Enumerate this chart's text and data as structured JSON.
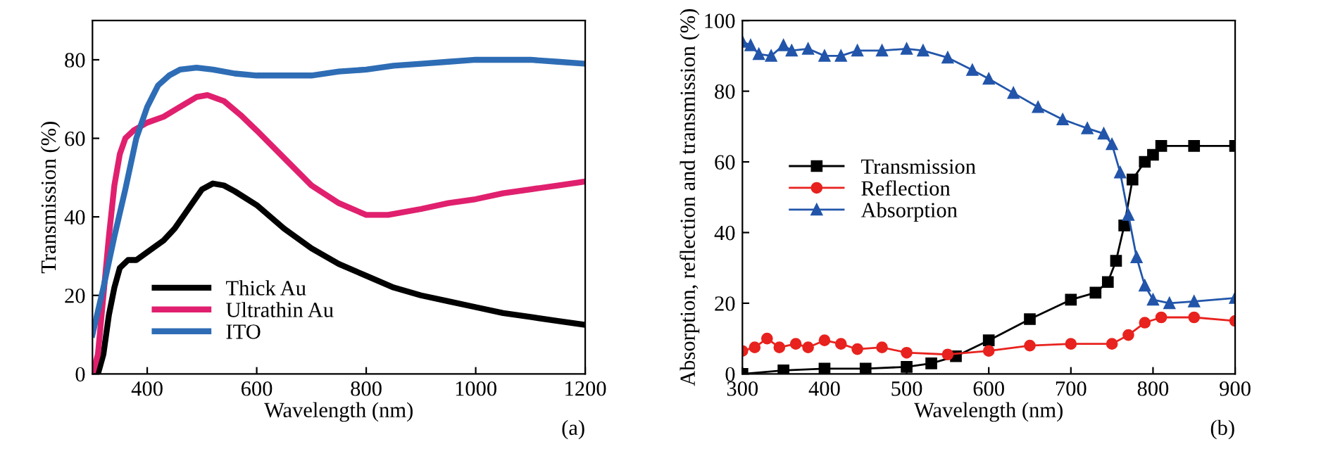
{
  "chart_data": [
    {
      "type": "line",
      "xlabel": "Wavelength (nm)",
      "ylabel": "Transmission (%)",
      "xlim": [
        300,
        1200
      ],
      "ylim": [
        0,
        90
      ],
      "xticks": [
        400,
        600,
        800,
        1000,
        1200
      ],
      "yticks": [
        0,
        20,
        40,
        60,
        80
      ],
      "grid": false,
      "legend": "bottom left",
      "marker": "none",
      "line_style": "solid",
      "annotations": [
        "(a)"
      ],
      "series": [
        {
          "name": "Thick Au",
          "color": "#000000",
          "x": [
            310,
            320,
            330,
            340,
            350,
            365,
            380,
            400,
            430,
            450,
            480,
            500,
            520,
            540,
            560,
            600,
            650,
            700,
            750,
            800,
            850,
            900,
            950,
            1000,
            1050,
            1100,
            1150,
            1200
          ],
          "values": [
            0,
            5,
            15,
            22,
            27,
            29,
            29,
            31,
            34,
            37,
            43,
            47,
            48.5,
            48,
            46.5,
            43,
            37,
            32,
            28,
            25,
            22,
            20,
            18.5,
            17,
            15.5,
            14.5,
            13.5,
            12.5
          ]
        },
        {
          "name": "Ultrathin Au",
          "color": "#e0206e",
          "x": [
            300,
            310,
            320,
            330,
            340,
            350,
            360,
            375,
            400,
            430,
            460,
            490,
            510,
            540,
            570,
            600,
            650,
            700,
            750,
            800,
            840,
            900,
            950,
            1000,
            1050,
            1100,
            1150,
            1200
          ],
          "values": [
            0,
            5,
            20,
            35,
            48,
            56,
            60,
            62,
            64,
            65.5,
            68,
            70.5,
            71,
            69.5,
            66,
            62,
            55,
            48,
            43.5,
            40.5,
            40.5,
            42,
            43.5,
            44.5,
            46,
            47,
            48,
            49
          ]
        },
        {
          "name": "ITO",
          "color": "#2e6db5",
          "x": [
            300,
            320,
            340,
            360,
            380,
            400,
            420,
            440,
            460,
            490,
            520,
            560,
            600,
            650,
            700,
            750,
            800,
            850,
            900,
            950,
            1000,
            1050,
            1100,
            1150,
            1200
          ],
          "values": [
            10,
            22,
            35,
            47,
            60,
            68,
            73.5,
            76,
            77.5,
            78,
            77.5,
            76.5,
            76,
            76,
            76,
            77,
            77.5,
            78.5,
            79,
            79.5,
            80,
            80,
            80,
            79.5,
            79
          ]
        }
      ]
    },
    {
      "type": "line",
      "xlabel": "Wavelength (nm)",
      "ylabel": "Absorption, reflection and transmission (%)",
      "xlim": [
        300,
        900
      ],
      "ylim": [
        0,
        100
      ],
      "xticks": [
        300,
        400,
        500,
        600,
        700,
        800,
        900
      ],
      "yticks": [
        0,
        20,
        40,
        60,
        80,
        100
      ],
      "grid": false,
      "legend": "left",
      "line_style": "solid",
      "annotations": [
        "(b)"
      ],
      "series": [
        {
          "name": "Transmission",
          "color": "#000000",
          "marker": "square",
          "x": [
            300,
            350,
            400,
            450,
            500,
            530,
            560,
            600,
            650,
            700,
            730,
            745,
            755,
            765,
            775,
            790,
            800,
            810,
            850,
            900
          ],
          "values": [
            0,
            1,
            1.5,
            1.5,
            2,
            3,
            5,
            9.5,
            15.5,
            21,
            23,
            26,
            32,
            42,
            55,
            60,
            62,
            64.5,
            64.5,
            64.5
          ]
        },
        {
          "name": "Reflection",
          "color": "#e8221e",
          "marker": "circle",
          "x": [
            300,
            315,
            330,
            345,
            365,
            380,
            400,
            420,
            440,
            470,
            500,
            550,
            600,
            650,
            700,
            750,
            770,
            790,
            810,
            850,
            900
          ],
          "values": [
            6.5,
            7.5,
            10,
            7.5,
            8.5,
            7.5,
            9.5,
            8.5,
            7,
            7.5,
            6,
            5.5,
            6.5,
            8,
            8.5,
            8.5,
            11,
            14.5,
            16,
            16,
            15
          ]
        },
        {
          "name": "Absorption",
          "color": "#2255aa",
          "marker": "triangle",
          "x": [
            300,
            310,
            320,
            335,
            350,
            360,
            380,
            400,
            420,
            440,
            470,
            500,
            520,
            550,
            580,
            600,
            630,
            660,
            690,
            720,
            740,
            750,
            760,
            770,
            780,
            790,
            800,
            820,
            850,
            900
          ],
          "values": [
            94,
            93,
            90.5,
            90,
            93,
            91.5,
            92,
            90,
            90,
            91.5,
            91.5,
            92,
            91.5,
            89.5,
            86,
            83.5,
            79.5,
            75.5,
            72,
            69.5,
            68,
            65,
            57,
            45,
            33,
            25,
            21,
            20,
            20.5,
            21.5
          ]
        }
      ]
    }
  ]
}
